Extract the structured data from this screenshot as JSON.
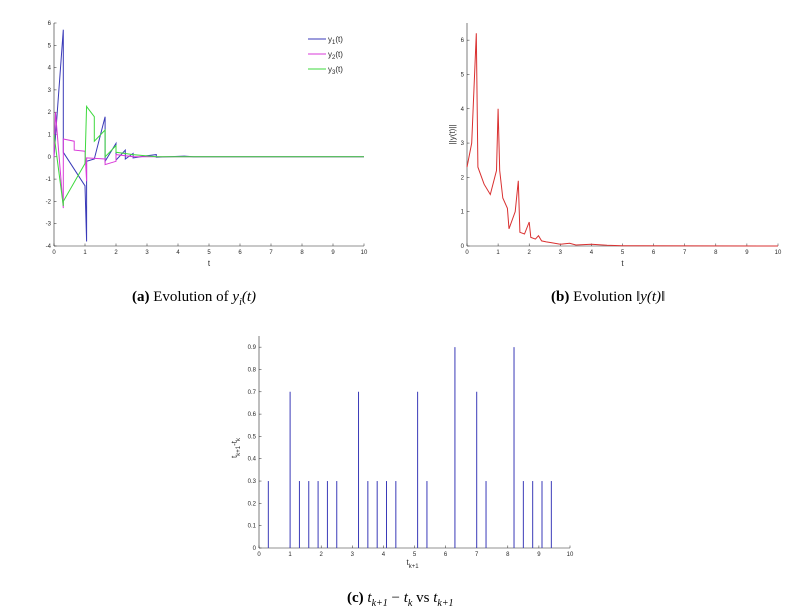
{
  "captions": {
    "a": {
      "tag": "(a)",
      "text": "Evolution of",
      "math": "y",
      "sub": "i",
      "arg": "(t)"
    },
    "b": {
      "tag": "(b)",
      "text": "Evolution",
      "math": "‖y(t)‖"
    },
    "c": {
      "tag": "(c)",
      "math1": "t",
      "sub1": "k+1",
      "minus": " − ",
      "math2": "t",
      "sub2": "k",
      "vs": " vs ",
      "math3": "t",
      "sub3": "k+1"
    }
  },
  "chart_data": [
    {
      "id": "a",
      "type": "line",
      "xlabel": "t",
      "ylabel": "",
      "xlim": [
        0,
        10
      ],
      "ylim": [
        -4,
        6
      ],
      "xticks": [
        0,
        1,
        2,
        3,
        4,
        5,
        6,
        7,
        8,
        9,
        10
      ],
      "yticks": [
        -4,
        -3,
        -2,
        -1,
        0,
        1,
        2,
        3,
        4,
        5,
        6
      ],
      "legend": {
        "position": "top-right",
        "entries": [
          {
            "label": "y",
            "sub": "1",
            "tail": "(t)"
          },
          {
            "label": "y",
            "sub": "2",
            "tail": "(t)"
          },
          {
            "label": "y",
            "sub": "3",
            "tail": "(t)"
          }
        ]
      },
      "series": [
        {
          "name": "y1(t)",
          "color": "#3a3ab8",
          "x": [
            0,
            0.3,
            0.3,
            1.0,
            1.05,
            1.05,
            1.3,
            1.65,
            1.65,
            2.0,
            2.0,
            2.3,
            2.3,
            2.55,
            2.55,
            3.0,
            3.3,
            3.3,
            3.7,
            4.2,
            4.5,
            10
          ],
          "y": [
            0,
            5.7,
            0.2,
            -1.3,
            -3.8,
            -0.2,
            -0.1,
            1.8,
            -0.2,
            0.6,
            -0.15,
            0.3,
            -0.1,
            0.15,
            -0.05,
            0.05,
            0.1,
            -0.02,
            0.0,
            0.03,
            0.0,
            0.0
          ]
        },
        {
          "name": "y2(t)",
          "color": "#d93ad9",
          "x": [
            0,
            0.05,
            0.3,
            0.3,
            0.65,
            0.65,
            1.0,
            1.05,
            1.05,
            1.65,
            1.65,
            2.0,
            2.0,
            2.3,
            2.55,
            3.3,
            4.5,
            10
          ],
          "y": [
            0,
            2.0,
            -2.3,
            0.8,
            0.7,
            0.3,
            0.25,
            -1.1,
            -0.05,
            -0.1,
            -0.35,
            -0.2,
            0.1,
            0.05,
            0.0,
            0.0,
            0.0,
            0.0
          ]
        },
        {
          "name": "y3(t)",
          "color": "#3dd93d",
          "x": [
            0,
            0.3,
            0.3,
            1.0,
            1.05,
            1.05,
            1.3,
            1.3,
            1.65,
            1.65,
            2.0,
            2.0,
            2.3,
            2.55,
            3.3,
            4.5,
            10
          ],
          "y": [
            1.0,
            -2.2,
            -2.0,
            -0.3,
            2.3,
            2.25,
            1.8,
            0.7,
            1.2,
            0.0,
            0.5,
            0.2,
            0.15,
            0.1,
            0.0,
            0.0,
            0.0
          ]
        }
      ]
    },
    {
      "id": "b",
      "type": "line",
      "xlabel": "t",
      "ylabel": "||y(t)||",
      "xlim": [
        0,
        10
      ],
      "ylim": [
        0,
        6.5
      ],
      "xticks": [
        0,
        1,
        2,
        3,
        4,
        5,
        6,
        7,
        8,
        9,
        10
      ],
      "yticks": [
        0,
        1,
        2,
        3,
        4,
        5,
        6
      ],
      "series": [
        {
          "name": "||y(t)||",
          "color": "#d93030",
          "x": [
            0,
            0.15,
            0.3,
            0.35,
            0.55,
            0.75,
            0.95,
            1.0,
            1.05,
            1.15,
            1.3,
            1.35,
            1.55,
            1.65,
            1.7,
            1.85,
            2.0,
            2.05,
            2.2,
            2.3,
            2.4,
            2.55,
            2.7,
            3.0,
            3.3,
            3.5,
            4.0,
            4.5,
            5.0,
            10
          ],
          "y": [
            2.3,
            3.0,
            6.2,
            2.3,
            1.8,
            1.5,
            2.2,
            4.0,
            2.2,
            1.4,
            1.1,
            0.5,
            1.0,
            1.9,
            0.4,
            0.35,
            0.7,
            0.25,
            0.2,
            0.3,
            0.15,
            0.12,
            0.1,
            0.05,
            0.08,
            0.03,
            0.05,
            0.02,
            0.01,
            0.0
          ]
        }
      ]
    },
    {
      "id": "c",
      "type": "bar",
      "xlabel": "t",
      "xlabel_sub": "k+1",
      "ylabel": "t",
      "ylabel_parts": {
        "a": "t",
        "asub": "k+1",
        "dash": "-t",
        "bsub": "k"
      },
      "xlim": [
        0,
        10
      ],
      "ylim": [
        0,
        0.95
      ],
      "xticks": [
        0,
        1,
        2,
        3,
        4,
        5,
        6,
        7,
        8,
        9,
        10
      ],
      "yticks": [
        0,
        0.1,
        0.2,
        0.3,
        0.4,
        0.5,
        0.6,
        0.7,
        0.8,
        0.9
      ],
      "color": "#3a3ab8",
      "x": [
        0.3,
        1.0,
        1.3,
        1.6,
        1.9,
        2.2,
        2.5,
        3.2,
        3.5,
        3.8,
        4.1,
        4.4,
        5.1,
        5.4,
        6.3,
        7.0,
        7.3,
        8.2,
        8.5,
        8.8,
        9.1,
        9.4
      ],
      "values": [
        0.3,
        0.7,
        0.3,
        0.3,
        0.3,
        0.3,
        0.3,
        0.7,
        0.3,
        0.3,
        0.3,
        0.3,
        0.7,
        0.3,
        0.9,
        0.7,
        0.3,
        0.9,
        0.3,
        0.3,
        0.3,
        0.3
      ]
    }
  ]
}
